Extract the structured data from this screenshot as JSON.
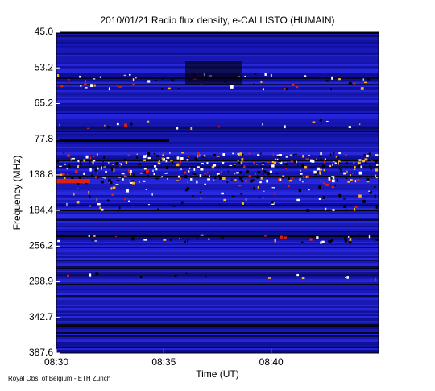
{
  "chart_data": {
    "type": "spectrogram",
    "title": "2010/01/21  Radio flux density, e-CALLISTO (HUMAIN)",
    "x_label": "Time (UT)",
    "y_label": "Frequency (MHz)",
    "footer": "Royal Obs. of Belgium - ETH Zurich",
    "xlim": [
      0,
      15
    ],
    "xticks": [
      {
        "value": 0,
        "label": "08:30"
      },
      {
        "value": 5,
        "label": "08:35"
      },
      {
        "value": 10,
        "label": "08:40"
      }
    ],
    "y_categories": [
      "45.0",
      "53.2",
      "65.2",
      "77.8",
      "138.8",
      "184.4",
      "256.2",
      "298.9",
      "342.7",
      "387.6"
    ]
  }
}
